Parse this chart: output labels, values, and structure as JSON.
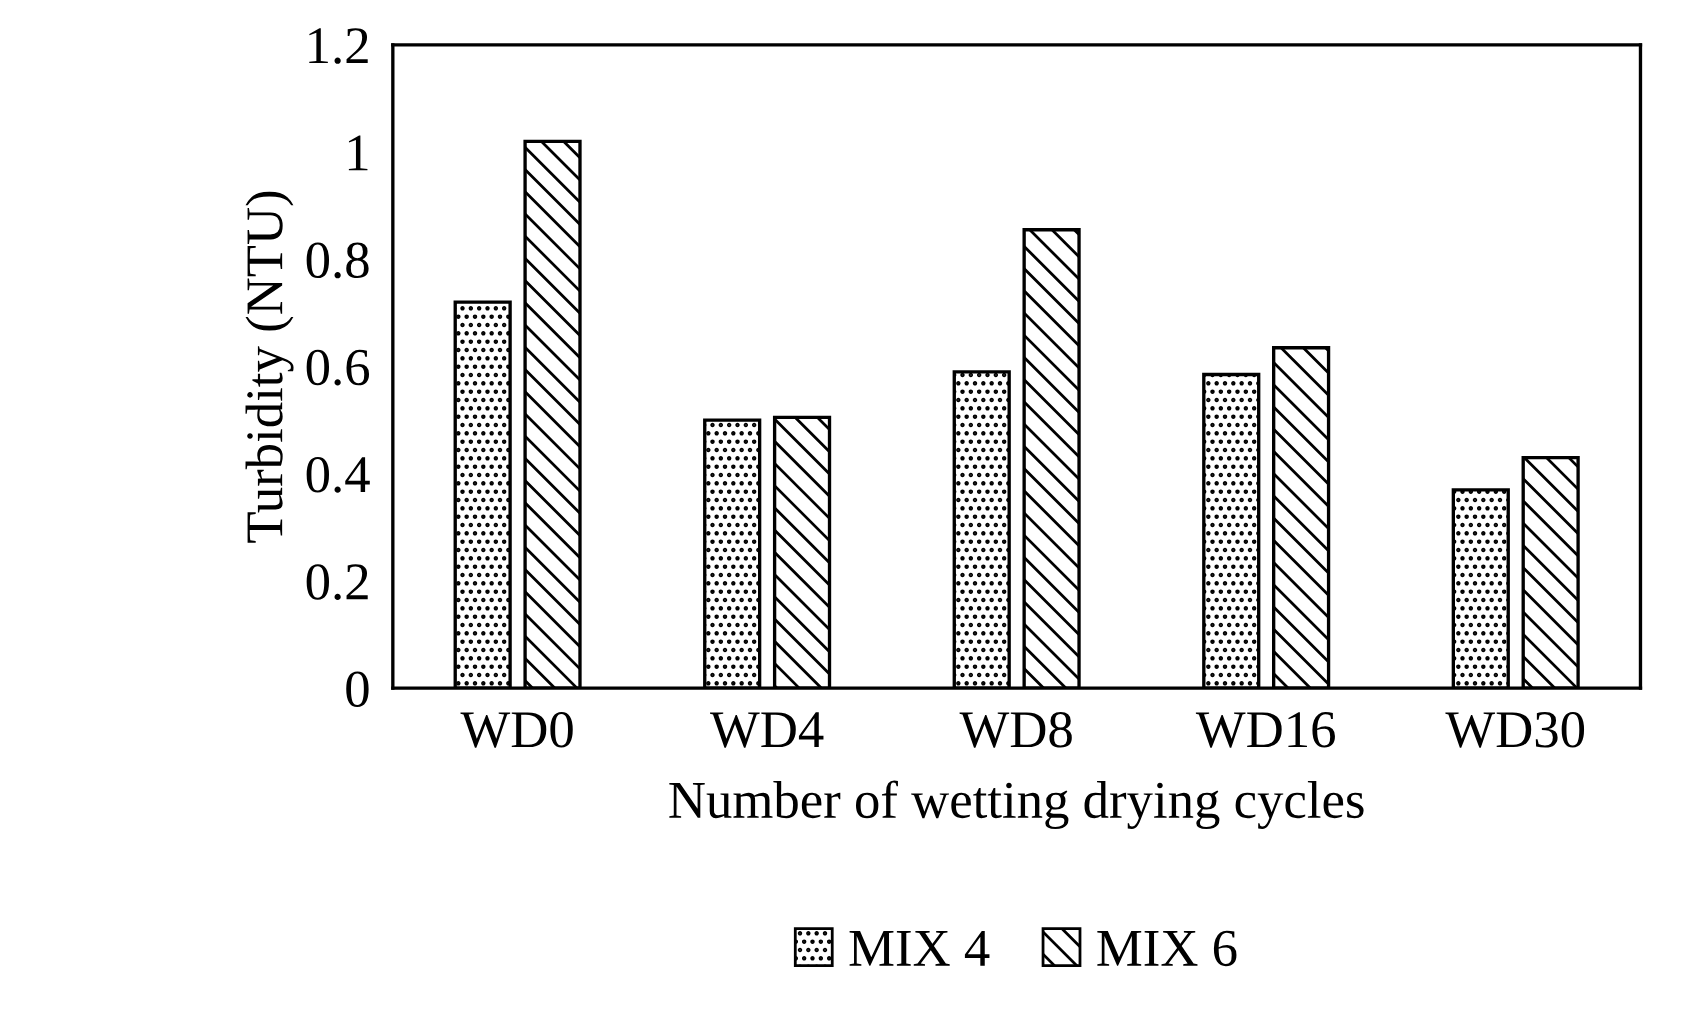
{
  "chart_data": {
    "type": "bar",
    "xlabel": "Number of wetting drying cycles",
    "ylabel": "Turbidity (NTU)",
    "categories": [
      "WD0",
      "WD4",
      "WD8",
      "WD16",
      "WD30"
    ],
    "series": [
      {
        "name": "MIX 4",
        "color": "#000000",
        "values": [
          0.72,
          0.5,
          0.59,
          0.585,
          0.37
        ]
      },
      {
        "name": "MIX 6",
        "color": "#000000",
        "values": [
          1.02,
          0.505,
          0.855,
          0.635,
          0.43
        ]
      }
    ],
    "ylim": [
      0,
      1.2
    ],
    "yticks": [
      0,
      0.2,
      0.4,
      0.6,
      0.8,
      1,
      1.2
    ],
    "grid": false,
    "legend": "bottom"
  }
}
